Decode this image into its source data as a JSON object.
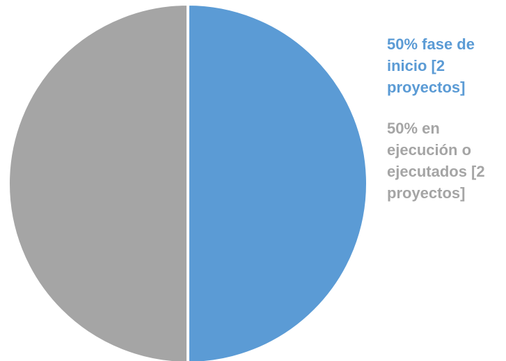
{
  "chart_data": {
    "type": "pie",
    "title": "",
    "slices": [
      {
        "label_lines": [
          "50% fase de",
          "inicio [2",
          "proyectos]"
        ],
        "value": 50,
        "color": "#5b9bd5"
      },
      {
        "label_lines": [
          "50% en",
          "ejecución o",
          "ejecutados [2",
          "proyectos]"
        ],
        "value": 50,
        "color": "#a5a5a5"
      }
    ],
    "legend_position": "right",
    "start_angle": "12-o'clock",
    "direction": "clockwise"
  }
}
